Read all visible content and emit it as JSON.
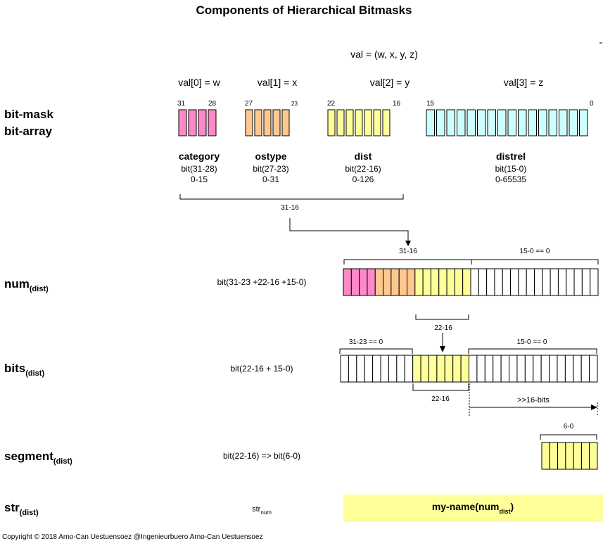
{
  "title": "Components of Hierarchical Bitmasks",
  "val_formula": "val = (w, x, y, z)",
  "val_labels": [
    "val[0] = w",
    "val[1] = x",
    "val[2] = y",
    "val[3] = z"
  ],
  "row_labels": {
    "bitmask_line1": "bit-mask",
    "bitmask_line2": "bit-array",
    "num": "num",
    "num_sub": "(dist)",
    "bits": "bits",
    "bits_sub": "(dist)",
    "segment": "segment",
    "segment_sub": "(dist)",
    "str": "str",
    "str_sub": "(dist)"
  },
  "bit_positions": {
    "cat_high": "31",
    "cat_low": "28",
    "os_high": "27",
    "os_low": "23",
    "dist_high": "22",
    "dist_low": "16",
    "rel_high": "15",
    "rel_low": "0"
  },
  "components": [
    {
      "name": "category",
      "bits": "bit(31-28)",
      "range": "0-15",
      "color": "#ff88c8",
      "count": 4
    },
    {
      "name": "ostype",
      "bits": "bit(27-23)",
      "range": "0-31",
      "color": "#ffc890",
      "count": 5
    },
    {
      "name": "dist",
      "bits": "bit(22-16)",
      "range": "0-126",
      "color": "#ffff99",
      "count": 7
    },
    {
      "name": "distrel",
      "bits": "bit(15-0)",
      "range": "0-65535",
      "color": "#ccffff",
      "count": 16
    }
  ],
  "brackets": {
    "top_span": "31-16",
    "num_high": "31-16",
    "num_low": "15-0 == 0",
    "num_dist": "22-16",
    "bits_high": "31-23 == 0",
    "bits_low": "15-0 == 0",
    "bits_dist": "22-16",
    "shift": ">>16-bits",
    "segment": "6-0"
  },
  "descriptions": {
    "num": "bit(31-23 +22-16 +15-0)",
    "bits": "bit(22-16 + 15-0)",
    "segment": "bit(22-16) => bit(6-0)",
    "str_main": "str",
    "str_sub": "num"
  },
  "str_box": {
    "text": "my-name(num",
    "sub": "dist",
    "close": ")",
    "color": "#ffff99"
  },
  "copyright": "Copyright © 2018 Arno-Can Uestuensoez @Ingenieurbuero Arno-Can Uestuensoez"
}
